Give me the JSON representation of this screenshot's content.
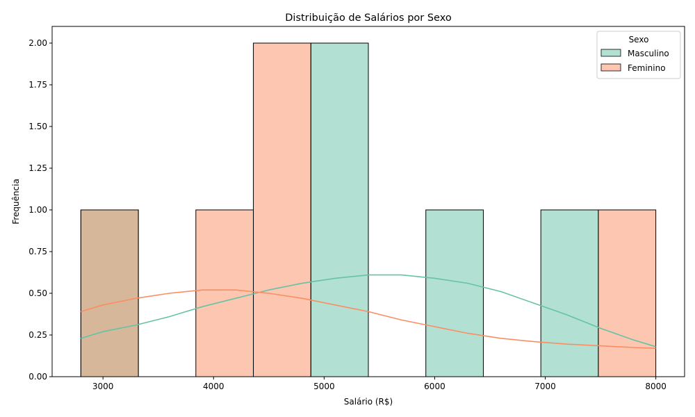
{
  "chart_data": {
    "type": "histogram",
    "title": "Distribuição de Salários por Sexo",
    "xlabel": "Salário (R$)",
    "ylabel": "Frequência",
    "xlim": [
      2540,
      8260
    ],
    "ylim": [
      0,
      2.1
    ],
    "x_ticks": [
      3000,
      4000,
      5000,
      6000,
      7000,
      8000
    ],
    "x_tick_labels": [
      "3000",
      "4000",
      "5000",
      "6000",
      "7000",
      "8000"
    ],
    "y_ticks": [
      0,
      0.25,
      0.5,
      0.75,
      1.0,
      1.25,
      1.5,
      1.75,
      2.0
    ],
    "y_tick_labels": [
      "0.00",
      "0.25",
      "0.50",
      "0.75",
      "1.00",
      "1.25",
      "1.50",
      "1.75",
      "2.00"
    ],
    "bin_edges": [
      2800,
      3320,
      3840,
      4360,
      4880,
      5400,
      5920,
      6440,
      6960,
      7480,
      8000
    ],
    "legend": {
      "title": "Sexo",
      "position": "top-right"
    },
    "series": [
      {
        "name": "Masculino",
        "color": "#66c2a5",
        "counts": [
          1,
          0,
          0,
          0,
          2,
          0,
          1,
          0,
          1,
          0
        ],
        "kde": [
          [
            2800,
            0.23
          ],
          [
            3000,
            0.27
          ],
          [
            3300,
            0.31
          ],
          [
            3600,
            0.36
          ],
          [
            3900,
            0.42
          ],
          [
            4200,
            0.47
          ],
          [
            4500,
            0.52
          ],
          [
            4800,
            0.56
          ],
          [
            5100,
            0.59
          ],
          [
            5400,
            0.61
          ],
          [
            5700,
            0.61
          ],
          [
            6000,
            0.59
          ],
          [
            6300,
            0.56
          ],
          [
            6600,
            0.51
          ],
          [
            6900,
            0.44
          ],
          [
            7200,
            0.37
          ],
          [
            7500,
            0.29
          ],
          [
            7800,
            0.22
          ],
          [
            8000,
            0.18
          ]
        ]
      },
      {
        "name": "Feminino",
        "color": "#fc8d62",
        "counts": [
          1,
          0,
          1,
          2,
          0,
          0,
          0,
          0,
          0,
          1
        ],
        "kde": [
          [
            2800,
            0.39
          ],
          [
            3000,
            0.43
          ],
          [
            3300,
            0.47
          ],
          [
            3600,
            0.5
          ],
          [
            3900,
            0.52
          ],
          [
            4200,
            0.52
          ],
          [
            4500,
            0.5
          ],
          [
            4800,
            0.47
          ],
          [
            5100,
            0.43
          ],
          [
            5400,
            0.39
          ],
          [
            5700,
            0.34
          ],
          [
            6000,
            0.3
          ],
          [
            6300,
            0.26
          ],
          [
            6600,
            0.23
          ],
          [
            6900,
            0.21
          ],
          [
            7200,
            0.195
          ],
          [
            7500,
            0.185
          ],
          [
            7800,
            0.175
          ],
          [
            8000,
            0.17
          ]
        ]
      }
    ]
  }
}
